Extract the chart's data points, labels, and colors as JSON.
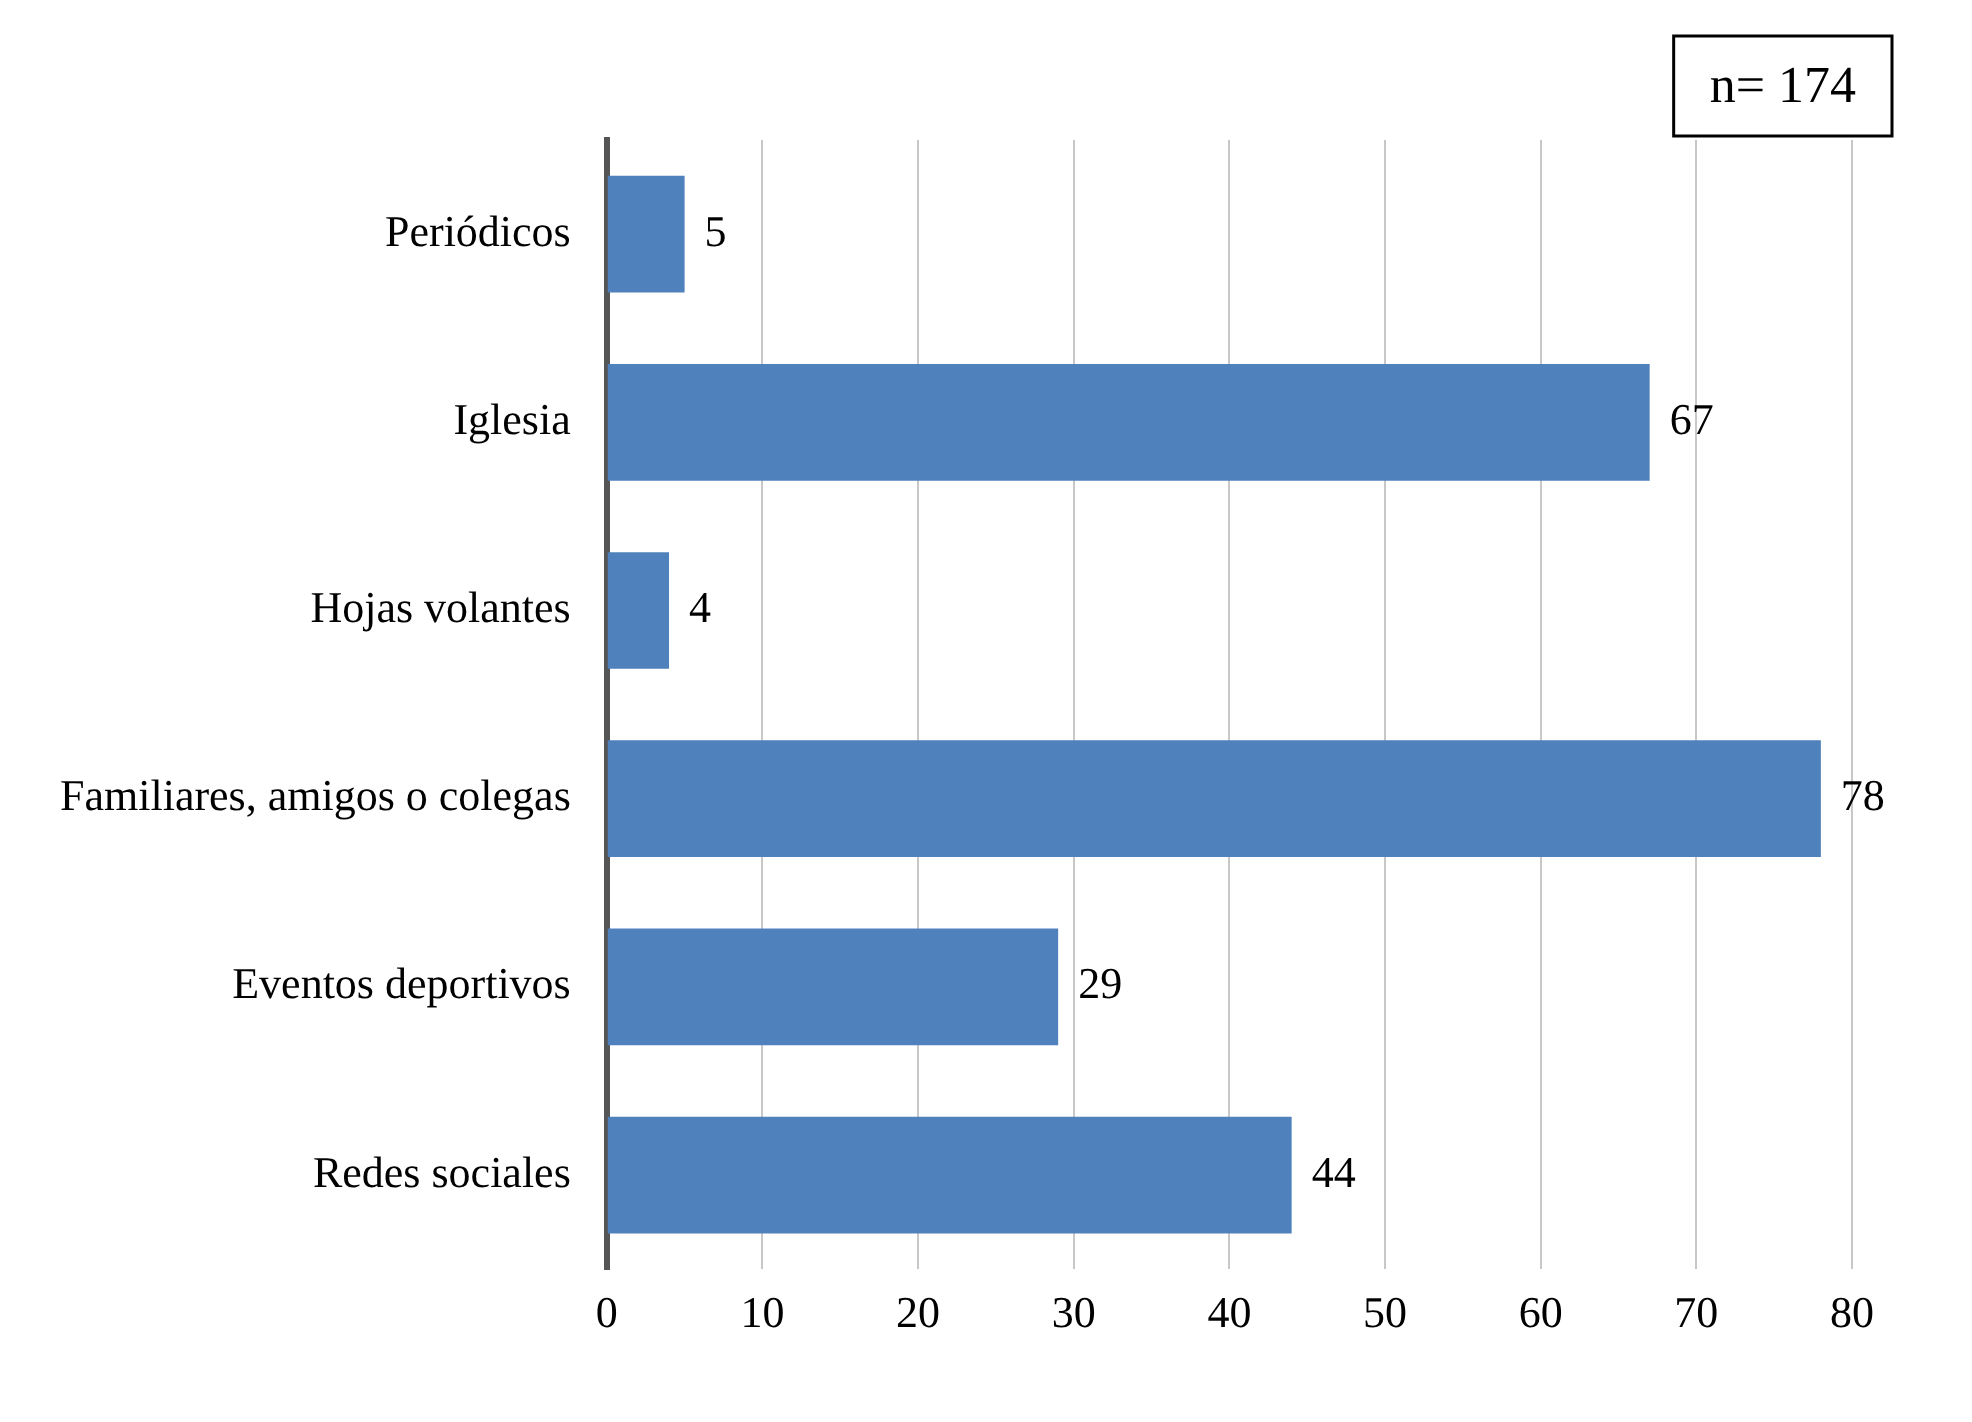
{
  "chart_data": {
    "type": "bar",
    "orientation": "horizontal",
    "categories": [
      "Periódicos",
      "Iglesia",
      "Hojas volantes",
      "Familiares, amigos o colegas",
      "Eventos deportivos",
      "Redes sociales"
    ],
    "values": [
      5,
      67,
      4,
      78,
      29,
      44
    ],
    "color": "#4f81bd",
    "xlim": [
      0,
      80
    ],
    "xticks": [
      0,
      10,
      20,
      30,
      40,
      50,
      60,
      70,
      80
    ],
    "grid": "x",
    "data_labels": true,
    "annotations": [
      "n= 174"
    ]
  }
}
